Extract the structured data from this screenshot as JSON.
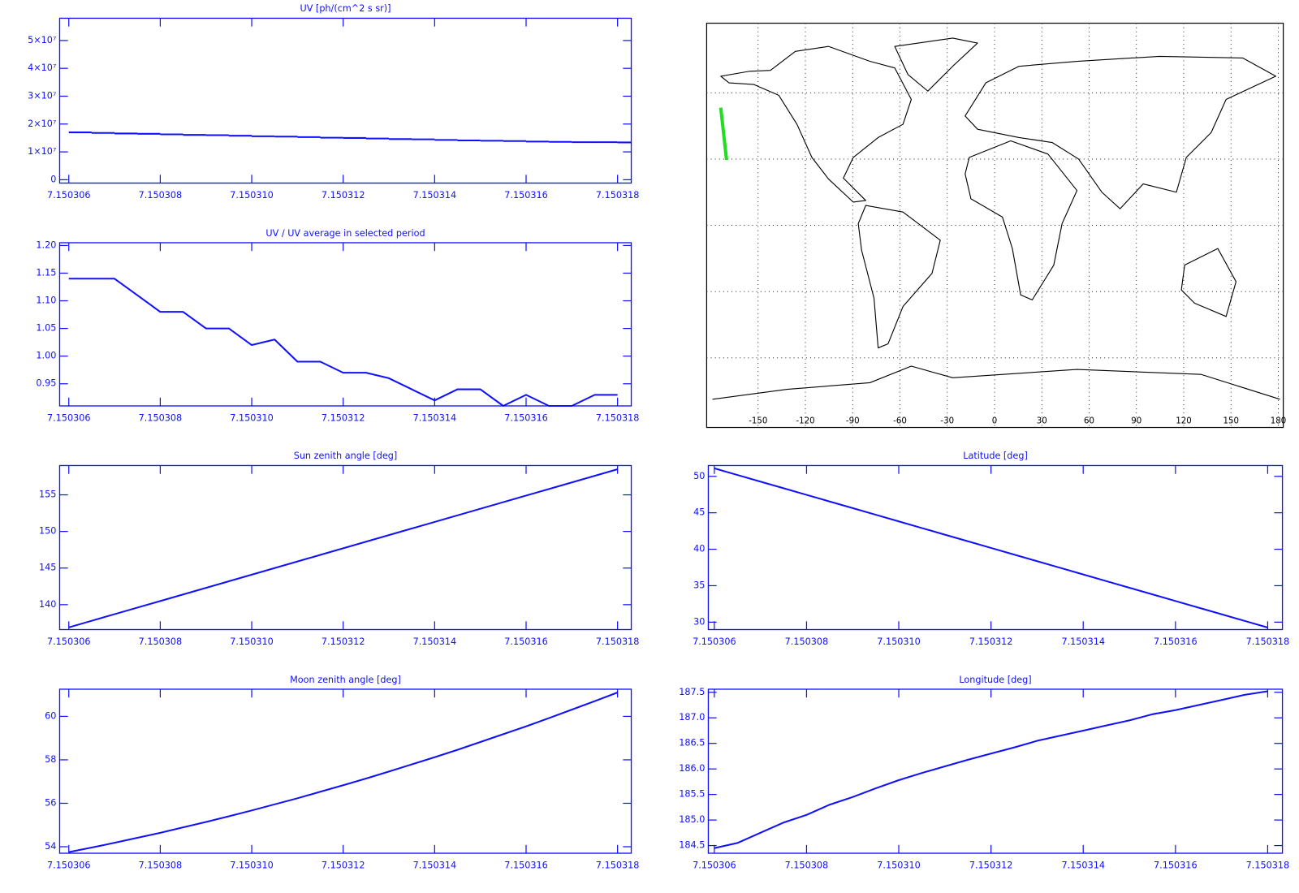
{
  "chart_data": [
    {
      "type": "line",
      "step": true,
      "title": "UV [ph/(cm^2 s sr)]",
      "color": "#1010ff",
      "x": [
        7.150306,
        7.1503065,
        7.150307,
        7.1503075,
        7.150308,
        7.1503085,
        7.150309,
        7.1503095,
        7.15031,
        7.1503105,
        7.150311,
        7.1503115,
        7.150312,
        7.1503125,
        7.150313,
        7.1503135,
        7.150314,
        7.1503145,
        7.150315,
        7.1503155,
        7.150316,
        7.1503165,
        7.150317,
        7.1503175,
        7.150318
      ],
      "values": [
        17000000,
        16800000,
        16600000,
        16500000,
        16300000,
        16100000,
        16000000,
        15800000,
        15600000,
        15500000,
        15300000,
        15100000,
        15000000,
        14800000,
        14600000,
        14500000,
        14300000,
        14100000,
        14000000,
        13900000,
        13700000,
        13600000,
        13500000,
        13500000,
        13400000
      ],
      "xlim": [
        7.1503058,
        7.1503183
      ],
      "ylim": [
        -1200000,
        58000000
      ],
      "xticks": [
        7.150306,
        7.150308,
        {
          "value": 7.15031,
          "label": "7.150310"
        },
        7.150312,
        7.150314,
        7.150316,
        7.150318
      ],
      "yticks": [
        0,
        {
          "value": 10000000,
          "label": "1×10⁷"
        },
        {
          "value": 20000000,
          "label": "2×10⁷"
        },
        {
          "value": 30000000,
          "label": "3×10⁷"
        },
        {
          "value": 40000000,
          "label": "4×10⁷"
        },
        {
          "value": 50000000,
          "label": "5×10⁷"
        }
      ]
    },
    {
      "type": "line",
      "title": "UV / UV average in selected period",
      "color": "#1010ff",
      "x": [
        7.150306,
        7.1503065,
        7.150307,
        7.1503075,
        7.150308,
        7.1503085,
        7.150309,
        7.1503095,
        7.15031,
        7.1503105,
        7.150311,
        7.1503115,
        7.150312,
        7.1503125,
        7.150313,
        7.1503135,
        7.150314,
        7.1503145,
        7.150315,
        7.1503155,
        7.150316,
        7.1503165,
        7.150317,
        7.1503175,
        7.150318
      ],
      "values": [
        1.14,
        1.14,
        1.14,
        1.11,
        1.08,
        1.08,
        1.05,
        1.05,
        1.02,
        1.03,
        0.99,
        0.99,
        0.97,
        0.97,
        0.96,
        0.94,
        0.92,
        0.94,
        0.94,
        0.91,
        0.93,
        0.91,
        0.91,
        0.93,
        0.93
      ],
      "xlim": [
        7.1503058,
        7.1503183
      ],
      "ylim": [
        0.91,
        1.205
      ],
      "xticks": [
        7.150306,
        7.150308,
        {
          "value": 7.15031,
          "label": "7.150310"
        },
        7.150312,
        7.150314,
        7.150316,
        7.150318
      ],
      "yticks": [
        0.95,
        {
          "value": 1,
          "label": "1.00"
        },
        1.05,
        {
          "value": 1.1,
          "label": "1.10"
        },
        1.15,
        {
          "value": 1.2,
          "label": "1.20"
        }
      ]
    },
    {
      "type": "map",
      "grid": true,
      "xlim": [
        -180,
        180
      ],
      "xticks": [
        -150,
        -120,
        -90,
        -60,
        -30,
        0,
        30,
        60,
        90,
        120,
        150,
        180
      ]
    },
    {
      "type": "line",
      "title": "Sun zenith angle [deg]",
      "color": "#1010ff",
      "x": [
        7.150306,
        7.1503065,
        7.150307,
        7.1503075,
        7.150308,
        7.1503085,
        7.150309,
        7.1503095,
        7.15031,
        7.1503105,
        7.150311,
        7.1503115,
        7.150312,
        7.1503125,
        7.150313,
        7.1503135,
        7.150314,
        7.1503145,
        7.150315,
        7.1503155,
        7.150316,
        7.1503165,
        7.150317,
        7.1503175,
        7.150318
      ],
      "values": [
        136.9,
        137.8,
        138.7,
        139.6,
        140.5,
        141.4,
        142.3,
        143.2,
        144.1,
        145.0,
        145.9,
        146.8,
        147.7,
        148.6,
        149.5,
        150.4,
        151.3,
        152.2,
        153.1,
        154.0,
        154.9,
        155.8,
        156.7,
        157.6,
        158.5
      ],
      "xlim": [
        7.1503058,
        7.1503183
      ],
      "ylim": [
        136.6,
        159
      ],
      "xticks": [
        7.150306,
        7.150308,
        {
          "value": 7.15031,
          "label": "7.150310"
        },
        7.150312,
        7.150314,
        7.150316,
        7.150318
      ],
      "yticks": [
        140,
        145,
        150,
        155
      ]
    },
    {
      "type": "line",
      "title": "Latitude [deg]",
      "color": "#1010ff",
      "x": [
        7.150306,
        7.1503065,
        7.150307,
        7.1503075,
        7.150308,
        7.1503085,
        7.150309,
        7.1503095,
        7.15031,
        7.1503105,
        7.150311,
        7.1503115,
        7.150312,
        7.1503125,
        7.150313,
        7.1503135,
        7.150314,
        7.1503145,
        7.150315,
        7.1503155,
        7.150316,
        7.1503165,
        7.150317,
        7.1503175,
        7.150318
      ],
      "values": [
        51.1,
        50.19,
        49.28,
        48.37,
        47.46,
        46.55,
        45.64,
        44.73,
        43.82,
        42.91,
        42.0,
        41.09,
        40.18,
        39.27,
        38.36,
        37.45,
        36.54,
        35.63,
        34.72,
        33.81,
        32.9,
        31.99,
        31.08,
        30.17,
        29.26
      ],
      "xlim": [
        7.15030587,
        7.15031832
      ],
      "ylim": [
        28.98,
        51.48
      ],
      "xticks": [
        7.150306,
        7.150308,
        {
          "value": 7.15031,
          "label": "7.150310"
        },
        7.150312,
        7.150314,
        7.150316,
        7.150318
      ],
      "yticks": [
        30,
        35,
        40,
        45,
        50
      ]
    },
    {
      "type": "line",
      "title": "Moon zenith angle [deg]",
      "color": "#1010ff",
      "x": [
        7.150306,
        7.1503065,
        7.150307,
        7.1503075,
        7.150308,
        7.1503085,
        7.150309,
        7.1503095,
        7.15031,
        7.1503105,
        7.150311,
        7.1503115,
        7.150312,
        7.1503125,
        7.150313,
        7.1503135,
        7.150314,
        7.1503145,
        7.150315,
        7.1503155,
        7.150316,
        7.1503165,
        7.150317,
        7.1503175,
        7.150318
      ],
      "values": [
        53.75,
        53.96,
        54.18,
        54.41,
        54.64,
        54.89,
        55.14,
        55.4,
        55.67,
        55.95,
        56.23,
        56.53,
        56.83,
        57.14,
        57.46,
        57.79,
        58.12,
        58.46,
        58.82,
        59.18,
        59.54,
        59.92,
        60.31,
        60.7,
        61.1
      ],
      "xlim": [
        7.1503058,
        7.1503183
      ],
      "ylim": [
        53.7,
        61.25
      ],
      "xticks": [
        7.150306,
        7.150308,
        {
          "value": 7.15031,
          "label": "7.150310"
        },
        7.150312,
        7.150314,
        7.150316,
        7.150318
      ],
      "yticks": [
        54,
        56,
        58,
        60
      ]
    },
    {
      "type": "line",
      "title": "Longitude [deg]",
      "color": "#1010ff",
      "x": [
        7.150306,
        7.1503065,
        7.150307,
        7.1503075,
        7.150308,
        7.1503085,
        7.150309,
        7.1503095,
        7.15031,
        7.1503105,
        7.150311,
        7.1503115,
        7.150312,
        7.1503125,
        7.150313,
        7.1503135,
        7.150314,
        7.1503145,
        7.150315,
        7.1503155,
        7.150316,
        7.1503165,
        7.150317,
        7.1503175,
        7.150318
      ],
      "values": [
        184.45,
        184.55,
        184.75,
        184.95,
        185.1,
        185.3,
        185.45,
        185.62,
        185.78,
        185.92,
        186.05,
        186.18,
        186.3,
        186.42,
        186.55,
        186.65,
        186.75,
        186.85,
        186.95,
        187.07,
        187.15,
        187.25,
        187.35,
        187.45,
        187.52
      ],
      "xlim": [
        7.15030587,
        7.15031832
      ],
      "ylim": [
        184.35,
        187.56
      ],
      "xticks": [
        7.150306,
        7.150308,
        {
          "value": 7.15031,
          "label": "7.150310"
        },
        7.150312,
        7.150314,
        7.150316,
        7.150318
      ],
      "yticks": [
        184.5,
        {
          "value": 185,
          "label": "185.0"
        },
        185.5,
        {
          "value": 186,
          "label": "186.0"
        },
        186.5,
        {
          "value": 187,
          "label": "187.0"
        },
        187.5
      ]
    }
  ]
}
